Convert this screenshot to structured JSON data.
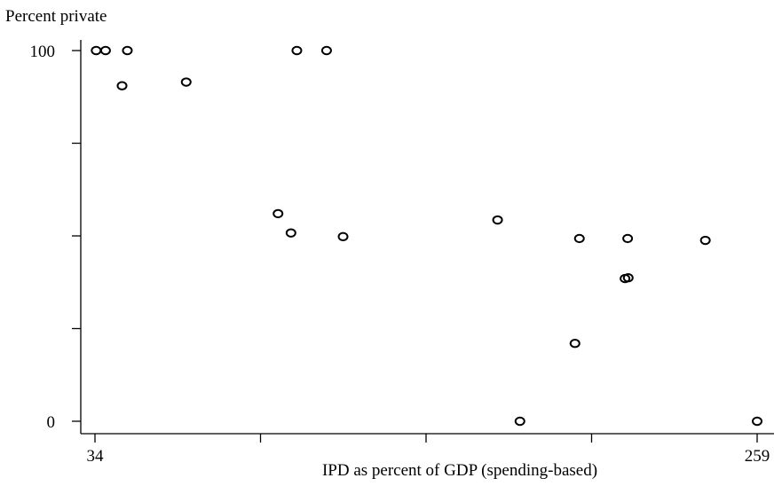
{
  "chart_data": {
    "type": "scatter",
    "title": "",
    "ylabel": "Percent private",
    "xlabel": "IPD as percent of GDP (spending-based)",
    "xlim": [
      34,
      259
    ],
    "ylim": [
      0,
      100
    ],
    "x_ticks": [
      34,
      90.25,
      146.5,
      202.75,
      259
    ],
    "x_tick_labels": [
      "34",
      "",
      "",
      "",
      "259"
    ],
    "y_ticks": [
      0,
      25,
      50,
      75,
      100
    ],
    "y_tick_labels": [
      "0",
      "",
      "",
      "",
      "100"
    ],
    "grid": false,
    "legend": "none",
    "marker_color": "#000000",
    "points": [
      {
        "x": 34.4,
        "y": 100
      },
      {
        "x": 37.6,
        "y": 100
      },
      {
        "x": 45.0,
        "y": 100
      },
      {
        "x": 43.2,
        "y": 90.5
      },
      {
        "x": 65.0,
        "y": 91.5
      },
      {
        "x": 96.2,
        "y": 56
      },
      {
        "x": 100.6,
        "y": 50.8
      },
      {
        "x": 102.6,
        "y": 100
      },
      {
        "x": 112.7,
        "y": 100
      },
      {
        "x": 118.3,
        "y": 49.8
      },
      {
        "x": 170.8,
        "y": 54.3
      },
      {
        "x": 178.4,
        "y": 0
      },
      {
        "x": 197.1,
        "y": 21
      },
      {
        "x": 198.6,
        "y": 49.3
      },
      {
        "x": 214.1,
        "y": 38.5
      },
      {
        "x": 215.2,
        "y": 38.7
      },
      {
        "x": 215.0,
        "y": 49.3
      },
      {
        "x": 241.4,
        "y": 48.8
      },
      {
        "x": 259.0,
        "y": 0
      }
    ]
  }
}
